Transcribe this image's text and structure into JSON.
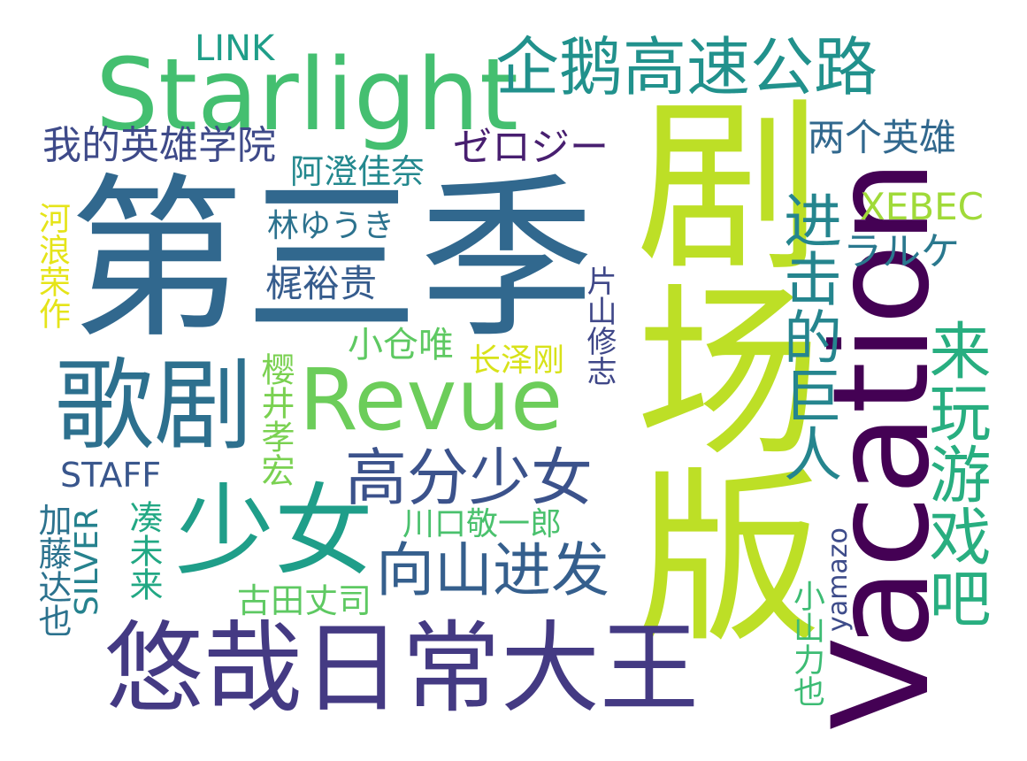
{
  "words": {
    "w1": {
      "text": "第三季",
      "color": "#31688e"
    },
    "w2": {
      "text": "剧场版",
      "color": "#bddf26"
    },
    "w3": {
      "text": "Starlight",
      "color": "#44bf70"
    },
    "w4": {
      "text": "Vacation",
      "color": "#440154"
    },
    "w5": {
      "text": "Revue",
      "color": "#6ccd5a"
    },
    "w6": {
      "text": "歌剧",
      "color": "#2d708e"
    },
    "w7": {
      "text": "少女",
      "color": "#1f9e89"
    },
    "w8": {
      "text": "悠哉日常大王",
      "color": "#443a83"
    },
    "w9": {
      "text": "企鹅高速公路",
      "color": "#21918c"
    },
    "w10": {
      "text": "高分少女",
      "color": "#3b528b"
    },
    "w11": {
      "text": "进击的巨人",
      "color": "#25858e"
    },
    "w12": {
      "text": "来玩游戏吧",
      "color": "#28ae80"
    },
    "w13": {
      "text": "向山进发",
      "color": "#355f8d"
    },
    "w14": {
      "text": "我的英雄学院",
      "color": "#3e4a89"
    },
    "w15": {
      "text": "两个英雄",
      "color": "#31688e"
    },
    "w16": {
      "text": "ゼロジー",
      "color": "#481f70"
    },
    "w17": {
      "text": "阿澄佳奈",
      "color": "#23888e"
    },
    "w18": {
      "text": "LINK",
      "color": "#1f9e89"
    },
    "w19": {
      "text": "XEBEC",
      "color": "#a0da39"
    },
    "w20": {
      "text": "ラルケ",
      "color": "#2a788e"
    },
    "w21": {
      "text": "林ゆうき",
      "color": "#2c728e"
    },
    "w22": {
      "text": "梶裕贵",
      "color": "#365c8d"
    },
    "w23": {
      "text": "河浪荣作",
      "color": "#e5e419"
    },
    "w24": {
      "text": "小仓唯",
      "color": "#5ec962"
    },
    "w25": {
      "text": "长泽刚",
      "color": "#d8e219"
    },
    "w26": {
      "text": "樱井孝宏",
      "color": "#7ad151"
    },
    "w27": {
      "text": "片山修志",
      "color": "#3f4788"
    },
    "w28": {
      "text": "STAFF",
      "color": "#39568c"
    },
    "w29": {
      "text": "川口敬一郎",
      "color": "#4ac16d"
    },
    "w30": {
      "text": "加藤达也",
      "color": "#2c728e"
    },
    "w31": {
      "text": "SILVER",
      "color": "#26828e"
    },
    "w32": {
      "text": "凑未来",
      "color": "#22a884"
    },
    "w33": {
      "text": "古田丈司",
      "color": "#5ec962"
    },
    "w34": {
      "text": "小山力也",
      "color": "#3dbc74"
    },
    "w35": {
      "text": "yamazo",
      "color": "#3e4c8a"
    }
  }
}
